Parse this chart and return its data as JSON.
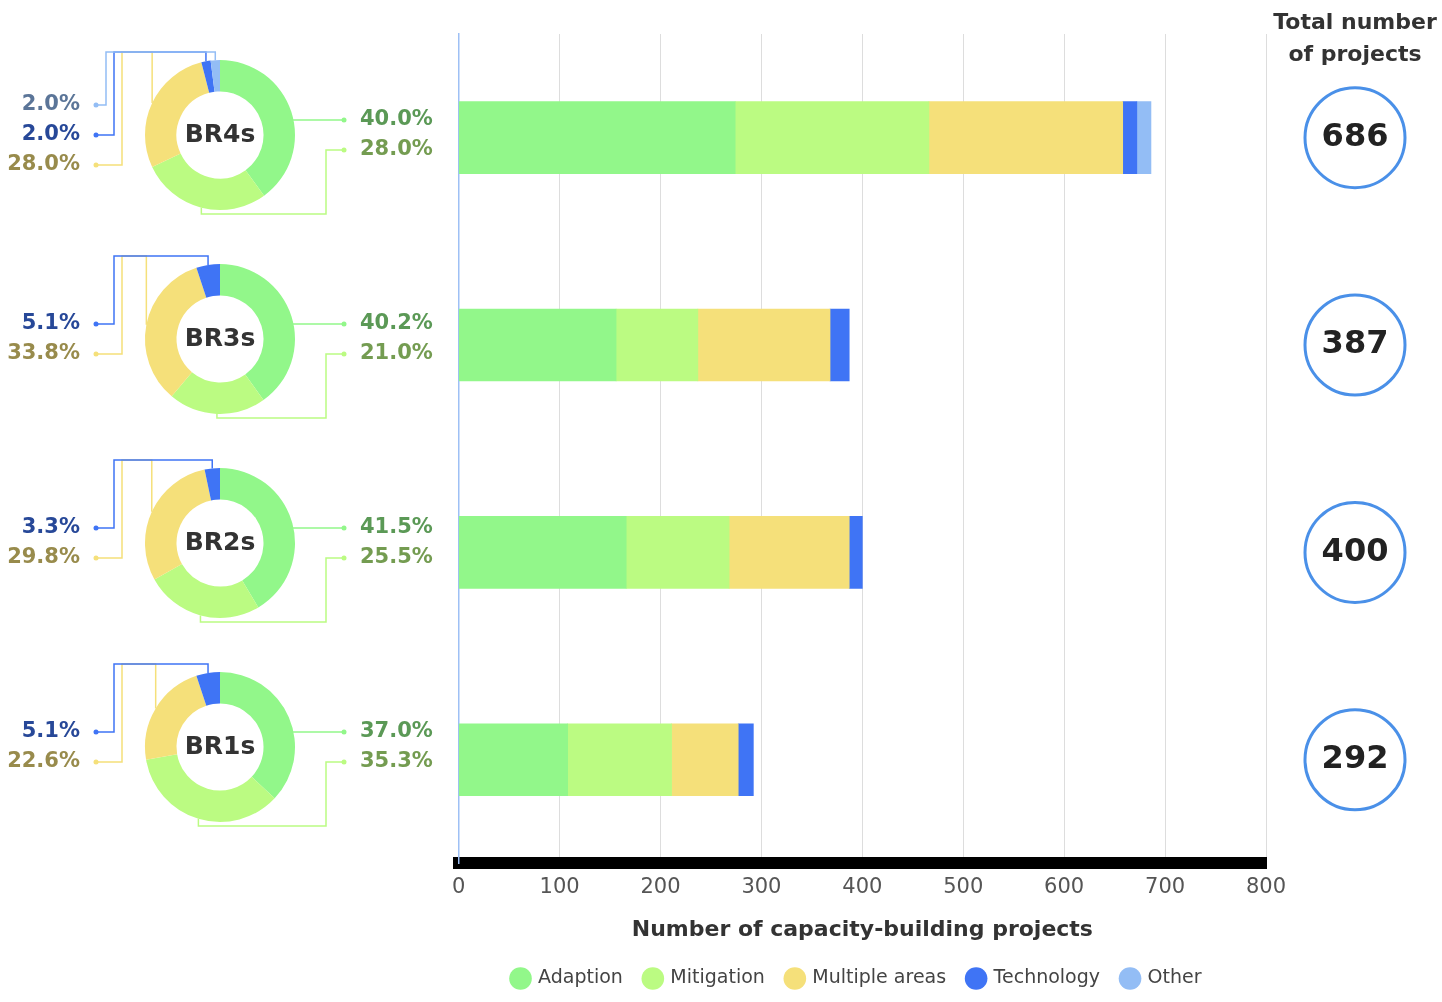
{
  "chart_data": [
    {
      "type": "donut",
      "title": "BR4s",
      "categories": [
        null,
        null,
        null,
        null,
        null
      ],
      "values": [
        40.0,
        28.0,
        28.0,
        2.0,
        2.0
      ],
      "colors": [
        "#92f78a",
        "#bbfb82",
        "#f5e07a",
        "#3f74f5",
        "#93bdf5"
      ],
      "value_labels": [
        "40.0%",
        "28.0%",
        "28.0%",
        "2.0%",
        "2.0%"
      ]
    },
    {
      "type": "donut",
      "title": "BR3s",
      "categories": [
        null,
        null,
        null,
        null
      ],
      "values": [
        40.2,
        21.0,
        33.8,
        5.1
      ],
      "colors": [
        "#92f78a",
        "#bbfb82",
        "#f5e07a",
        "#3f74f5"
      ],
      "value_labels": [
        "40.2%",
        "21.0%",
        "33.8%",
        "5.1%"
      ]
    },
    {
      "type": "donut",
      "title": "BR2s",
      "categories": [
        null,
        null,
        null,
        null
      ],
      "values": [
        41.5,
        25.5,
        29.8,
        3.3
      ],
      "colors": [
        "#92f78a",
        "#bbfb82",
        "#f5e07a",
        "#3f74f5"
      ],
      "value_labels": [
        "41.5%",
        "25.5%",
        "29.8%",
        "3.3%"
      ]
    },
    {
      "type": "donut",
      "title": "BR1s",
      "categories": [
        null,
        null,
        null,
        null
      ],
      "values": [
        37.0,
        35.3,
        22.6,
        5.1
      ],
      "colors": [
        "#92f78a",
        "#bbfb82",
        "#f5e07a",
        "#3f74f5"
      ],
      "value_labels": [
        "37.0%",
        "35.3%",
        "22.6%",
        "5.1%"
      ]
    },
    {
      "type": "bar",
      "orientation": "horizontal",
      "stacked": true,
      "categories": [
        null,
        null,
        null,
        null
      ],
      "xlabel": "Number of capacity-building projects",
      "xlim": [
        0,
        800
      ],
      "xticks": [
        0,
        100,
        200,
        300,
        400,
        500,
        600,
        700,
        800
      ],
      "grid": "x",
      "tick_labels": "x",
      "legend": "bottom",
      "annotations": [
        "Total number of projects",
        "686",
        "387",
        "400",
        "292"
      ],
      "series": [
        {
          "name": "Adaption",
          "color": "#92f78a",
          "values": [
            274,
            156,
            166,
            108
          ]
        },
        {
          "name": "Mitigation",
          "color": "#bbfb82",
          "values": [
            192,
            81,
            102,
            103
          ]
        },
        {
          "name": "Multiple areas",
          "color": "#f5e07a",
          "values": [
            192,
            131,
            119,
            66
          ]
        },
        {
          "name": "Technology",
          "color": "#3f74f5",
          "values": [
            14,
            19,
            13,
            15
          ]
        },
        {
          "name": "Other",
          "color": "#93bdf5",
          "values": [
            14,
            null,
            null,
            null
          ]
        }
      ]
    }
  ]
}
